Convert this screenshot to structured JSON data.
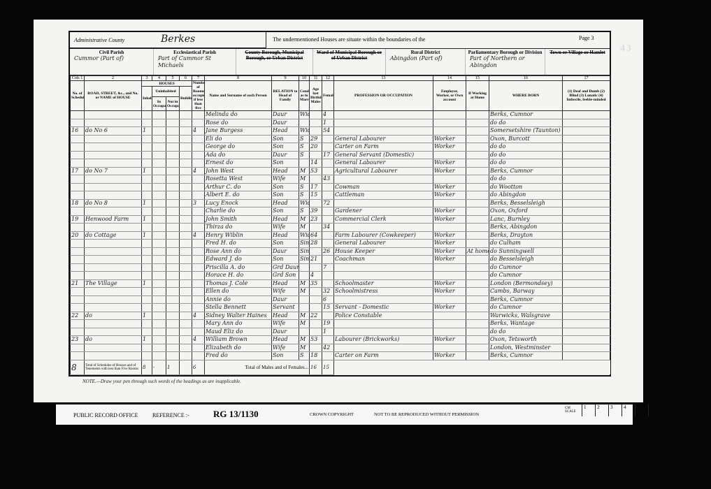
{
  "header": {
    "admin_county_label": "Administrative County",
    "admin_county": "Berkes",
    "intro": "The undermentioned Houses are situate within the boundaries of the",
    "page": "Page 3",
    "civil_parish_label": "Civil Parish",
    "civil_parish": "Cummor (Part of)",
    "eccl_parish_label": "Ecclesiastical Parish",
    "eccl_parish": "Part of Cummor St Michaels",
    "county_borough_label": "County Borough, Municipal Borough, or Urban District",
    "ward_label": "Ward of Municipal Borough or of Urban District",
    "rural_district_label": "Rural District",
    "rural_district": "Abingdon (Part of)",
    "parl_borough_label": "Parliamentary Borough or Division",
    "parl_borough": "Part of Northern or Abingdon",
    "town_label": "Town or Village or Hamlet",
    "folio": "43"
  },
  "columns": {
    "numbers": [
      "Cols 1",
      "2",
      "3",
      "4",
      "5",
      "6",
      "7",
      "8",
      "9",
      "10",
      "11",
      "12",
      "13",
      "14",
      "15",
      "16",
      "17"
    ],
    "labels": [
      "No. of Schedule",
      "ROAD, STREET, &c., and No. or NAME of HOUSE",
      "Inhabited",
      "In Occupation",
      "Not in Occupation",
      "Building",
      "Number of Rooms occupied if less than five",
      "Name and Surname of each Person",
      "RELATION to Head of Family",
      "Condition as to Marriage",
      "Age last Birthday Males",
      "Females",
      "PROFESSION OR OCCUPATION",
      "Employer, Worker, or Own account",
      "If Working at Home",
      "WHERE BORN",
      "(1) Deaf and Dumb (2) Blind (3) Lunatic (4) Imbecile, feeble-minded"
    ],
    "houses_label": "HOUSES",
    "uninhabited_label": "Uninhabited"
  },
  "rows": [
    [
      "",
      "",
      "",
      "",
      "",
      "",
      "",
      "Melinda do",
      "Daur",
      "Wid",
      "",
      "4",
      "",
      "",
      "",
      "Berks, Cumnor",
      ""
    ],
    [
      "",
      "",
      "",
      "",
      "",
      "",
      "",
      "Rose do",
      "Daur",
      "",
      "",
      "1",
      "",
      "",
      "",
      "do do",
      ""
    ],
    [
      "16",
      "do No 6",
      "1",
      "",
      "",
      "",
      "4",
      "Jane Burgess",
      "Head",
      "Wid",
      "",
      "54",
      "",
      "",
      "",
      "Somersetshire (Taunton)",
      ""
    ],
    [
      "",
      "",
      "",
      "",
      "",
      "",
      "",
      "Eli do",
      "Son",
      "S",
      "29",
      "",
      "General Labourer",
      "Worker",
      "",
      "Oxon, Burcott",
      ""
    ],
    [
      "",
      "",
      "",
      "",
      "",
      "",
      "",
      "George do",
      "Son",
      "S",
      "20",
      "",
      "Carter on Farm",
      "Worker",
      "",
      "do do",
      ""
    ],
    [
      "",
      "",
      "",
      "",
      "",
      "",
      "",
      "Ada do",
      "Daur",
      "S",
      "",
      "17",
      "General Servant (Domestic)",
      "",
      "",
      "do do",
      ""
    ],
    [
      "",
      "",
      "",
      "",
      "",
      "",
      "",
      "Ernest do",
      "Son",
      "",
      "14",
      "",
      "General Labourer",
      "Worker",
      "",
      "do do",
      ""
    ],
    [
      "17",
      "do No 7",
      "1",
      "",
      "",
      "",
      "4",
      "John West",
      "Head",
      "M",
      "53",
      "",
      "Agricultural Labourer",
      "Worker",
      "",
      "Berks, Cumnor",
      ""
    ],
    [
      "",
      "",
      "",
      "",
      "",
      "",
      "",
      "Rosetta West",
      "Wife",
      "M",
      "",
      "43",
      "",
      "",
      "",
      "do do",
      ""
    ],
    [
      "",
      "",
      "",
      "",
      "",
      "",
      "",
      "Arthur C. do",
      "Son",
      "S",
      "17",
      "",
      "Cowman",
      "Worker",
      "",
      "do Wootton",
      ""
    ],
    [
      "",
      "",
      "",
      "",
      "",
      "",
      "",
      "Albert E. do",
      "Son",
      "S",
      "15",
      "",
      "Cattleman",
      "Worker",
      "",
      "do Abingdon",
      ""
    ],
    [
      "18",
      "do No 8",
      "1",
      "",
      "",
      "",
      "3",
      "Lucy Enock",
      "Head",
      "Wid",
      "",
      "72",
      "",
      "",
      "",
      "Berks, Besselsleigh",
      ""
    ],
    [
      "",
      "",
      "",
      "",
      "",
      "",
      "",
      "Charlie do",
      "Son",
      "S",
      "39",
      "",
      "Gardener",
      "Worker",
      "",
      "Oxon, Oxford",
      ""
    ],
    [
      "19",
      "Henwood Farm",
      "1",
      "",
      "",
      "",
      "",
      "John Smith",
      "Head",
      "M",
      "23",
      "",
      "Commercial Clerk",
      "Worker",
      "",
      "Lanc, Burnley",
      ""
    ],
    [
      "",
      "",
      "",
      "",
      "",
      "",
      "",
      "Thirza do",
      "Wife",
      "M",
      "",
      "34",
      "",
      "",
      "",
      "Berks, Abingdon",
      ""
    ],
    [
      "20",
      "do Cottage",
      "1",
      "",
      "",
      "",
      "4",
      "Henry Wiblin",
      "Head",
      "Wid",
      "64",
      "",
      "Farm Labourer (Cowkeeper)",
      "Worker",
      "",
      "Berks, Drayton",
      ""
    ],
    [
      "",
      "",
      "",
      "",
      "",
      "",
      "",
      "Fred H. do",
      "Son",
      "Sin",
      "28",
      "",
      "General Labourer",
      "Worker",
      "",
      "do Culham",
      ""
    ],
    [
      "",
      "",
      "",
      "",
      "",
      "",
      "",
      "Rose Ann do",
      "Daur",
      "Sin",
      "",
      "26",
      "House Keeper",
      "Worker",
      "At home",
      "do Sunningwell",
      ""
    ],
    [
      "",
      "",
      "",
      "",
      "",
      "",
      "",
      "Edward J. do",
      "Son",
      "Sin",
      "21",
      "",
      "Coachman",
      "Worker",
      "",
      "do Besselsleigh",
      ""
    ],
    [
      "",
      "",
      "",
      "",
      "",
      "",
      "",
      "Priscilla A. do",
      "Grd Daur",
      "",
      "",
      "7",
      "",
      "",
      "",
      "do Cumnor",
      ""
    ],
    [
      "",
      "",
      "",
      "",
      "",
      "",
      "",
      "Horace H. do",
      "Grd Son",
      "",
      "4",
      "",
      "",
      "",
      "",
      "do Cumnor",
      ""
    ],
    [
      "21",
      "The Village",
      "1",
      "",
      "",
      "",
      "",
      "Thomas J. Cole",
      "Head",
      "M",
      "35",
      "",
      "Schoolmaster",
      "Worker",
      "",
      "London (Bermondsey)",
      ""
    ],
    [
      "",
      "",
      "",
      "",
      "",
      "",
      "",
      "Ellen do",
      "Wife",
      "M",
      "",
      "32",
      "Schoolmistress",
      "Worker",
      "",
      "Cambs, Barway",
      ""
    ],
    [
      "",
      "",
      "",
      "",
      "",
      "",
      "",
      "Annie do",
      "Daur",
      "",
      "",
      "6",
      "",
      "",
      "",
      "Berks, Cumnor",
      ""
    ],
    [
      "",
      "",
      "",
      "",
      "",
      "",
      "",
      "Stella Bennett",
      "Servant",
      "",
      "",
      "15",
      "Servant - Domestic",
      "Worker",
      "",
      "do Cumnor",
      ""
    ],
    [
      "22",
      "do",
      "1",
      "",
      "",
      "",
      "4",
      "Sidney Walter Haines",
      "Head",
      "M",
      "22",
      "",
      "Police Constable",
      "",
      "",
      "Warwicks, Walsgrave",
      ""
    ],
    [
      "",
      "",
      "",
      "",
      "",
      "",
      "",
      "Mary Ann do",
      "Wife",
      "M",
      "",
      "19",
      "",
      "",
      "",
      "Berks, Wantage",
      ""
    ],
    [
      "",
      "",
      "",
      "",
      "",
      "",
      "",
      "Maud Eliz do",
      "Daur",
      "",
      "",
      "1",
      "",
      "",
      "",
      "do do",
      ""
    ],
    [
      "23",
      "do",
      "1",
      "",
      "",
      "",
      "4",
      "William Brown",
      "Head",
      "M",
      "53",
      "",
      "Labourer (Brickworks)",
      "Worker",
      "",
      "Oxon, Tetsworth",
      ""
    ],
    [
      "",
      "",
      "",
      "",
      "",
      "",
      "",
      "Elizabeth do",
      "Wife",
      "M",
      "",
      "42",
      "",
      "",
      "",
      "London, Westminster",
      ""
    ],
    [
      "",
      "",
      "",
      "",
      "",
      "",
      "",
      "Fred do",
      "Son",
      "S",
      "18",
      "",
      "Carter on Farm",
      "Worker",
      "",
      "Berks, Cumnor",
      ""
    ]
  ],
  "totals": {
    "schedules": "8",
    "label_left": "Total of Schedules of Houses and of Tenements with less than Five Rooms",
    "inhabited": "8",
    "in_occupation": "-",
    "not_in_occupation": "1",
    "building": "",
    "rooms": "6",
    "label": "Total of Males and of Females...",
    "males": "16",
    "females": "15"
  },
  "note": "NOTE.—Draw your pen through such words of the headings as are inapplicable.",
  "footer": {
    "office": "PUBLIC RECORD OFFICE",
    "reference_label": "REFERENCE :-",
    "reference": "RG 13/1130",
    "copyright": "CROWN COPYRIGHT",
    "notice": "NOT TO BE REPRODUCED WITHOUT PERMISSION",
    "scale_label": "CM SCALE",
    "scale": [
      "1",
      "2",
      "3",
      "4",
      "5",
      "6"
    ]
  }
}
